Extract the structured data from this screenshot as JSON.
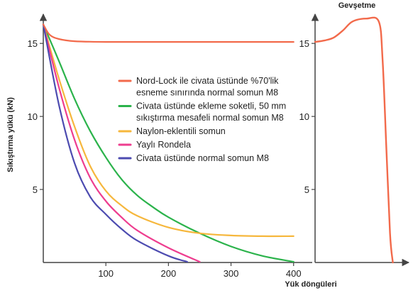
{
  "chart_data": [
    {
      "type": "line",
      "ylabel": "Sıkıştırma yükü (kN)",
      "xlabel": "Yük döngüleri",
      "xlim": [
        0,
        440
      ],
      "ylim": [
        0,
        17
      ],
      "x_ticks": [
        100,
        200,
        300,
        400
      ],
      "y_ticks": [
        5,
        10,
        15
      ],
      "grid": false,
      "legend_position": "top-center",
      "series": [
        {
          "name": "Nord-Lock ile civata üstünde %70'lik esneme sınırında normal somun M8",
          "legend_lines": [
            "Nord-Lock ile civata üstünde %70'lik",
            "esneme sınırında normal somun M8"
          ],
          "color": "#f26a4b",
          "points": [
            [
              0,
              16.3
            ],
            [
              10,
              15.6
            ],
            [
              25,
              15.3
            ],
            [
              50,
              15.15
            ],
            [
              100,
              15.1
            ],
            [
              200,
              15.1
            ],
            [
              300,
              15.1
            ],
            [
              400,
              15.1
            ]
          ]
        },
        {
          "name": "Civata üstünde ekleme soketli, 50 mm sıkıştırma mesafeli normal somun M8",
          "legend_lines": [
            "Civata üstünde ekleme soketli, 50 mm",
            "sıkıştırma mesafeli normal somun M8"
          ],
          "color": "#2bb34b",
          "points": [
            [
              0,
              16.3
            ],
            [
              25,
              13.8
            ],
            [
              50,
              11.2
            ],
            [
              75,
              9.0
            ],
            [
              100,
              7.2
            ],
            [
              125,
              5.7
            ],
            [
              150,
              4.6
            ],
            [
              175,
              3.8
            ],
            [
              200,
              3.1
            ],
            [
              250,
              2.0
            ],
            [
              300,
              1.1
            ],
            [
              350,
              0.45
            ],
            [
              400,
              0.05
            ]
          ]
        },
        {
          "name": "Naylon-eklentili somun",
          "legend_lines": [
            "Naylon-eklentili somun"
          ],
          "color": "#f6b73c",
          "points": [
            [
              0,
              16.3
            ],
            [
              25,
              12.6
            ],
            [
              50,
              9.3
            ],
            [
              75,
              6.6
            ],
            [
              100,
              4.9
            ],
            [
              125,
              3.9
            ],
            [
              150,
              3.2
            ],
            [
              200,
              2.4
            ],
            [
              250,
              2.0
            ],
            [
              300,
              1.85
            ],
            [
              350,
              1.8
            ],
            [
              400,
              1.8
            ]
          ]
        },
        {
          "name": "Yaylı Rondela",
          "legend_lines": [
            "Yaylı Rondela"
          ],
          "color": "#ee3d8f",
          "points": [
            [
              0,
              16.3
            ],
            [
              25,
              12.0
            ],
            [
              50,
              8.4
            ],
            [
              75,
              5.8
            ],
            [
              100,
              4.2
            ],
            [
              125,
              3.1
            ],
            [
              150,
              2.2
            ],
            [
              200,
              1.0
            ],
            [
              250,
              0.05
            ]
          ]
        },
        {
          "name": "Civata üstünde normal somun M8",
          "legend_lines": [
            "Civata üstünde normal somun M8"
          ],
          "color": "#4c4bb0",
          "points": [
            [
              0,
              16.3
            ],
            [
              25,
              10.8
            ],
            [
              50,
              6.8
            ],
            [
              75,
              4.5
            ],
            [
              100,
              3.3
            ],
            [
              125,
              2.3
            ],
            [
              150,
              1.5
            ],
            [
              200,
              0.45
            ],
            [
              230,
              0.05
            ]
          ]
        }
      ]
    },
    {
      "type": "line",
      "title": "Gevşetme",
      "ylim": [
        0,
        17
      ],
      "y_ticks": [
        5,
        10,
        15
      ],
      "grid": false,
      "series": [
        {
          "color": "#f26a4b",
          "points": [
            [
              0,
              15.1
            ],
            [
              0.1,
              15.2
            ],
            [
              0.2,
              15.4
            ],
            [
              0.3,
              15.9
            ],
            [
              0.4,
              16.5
            ],
            [
              0.55,
              16.7
            ],
            [
              0.68,
              16.5
            ],
            [
              0.72,
              14.0
            ],
            [
              0.76,
              8.0
            ],
            [
              0.8,
              2.0
            ],
            [
              0.83,
              0.0
            ]
          ]
        }
      ]
    }
  ]
}
